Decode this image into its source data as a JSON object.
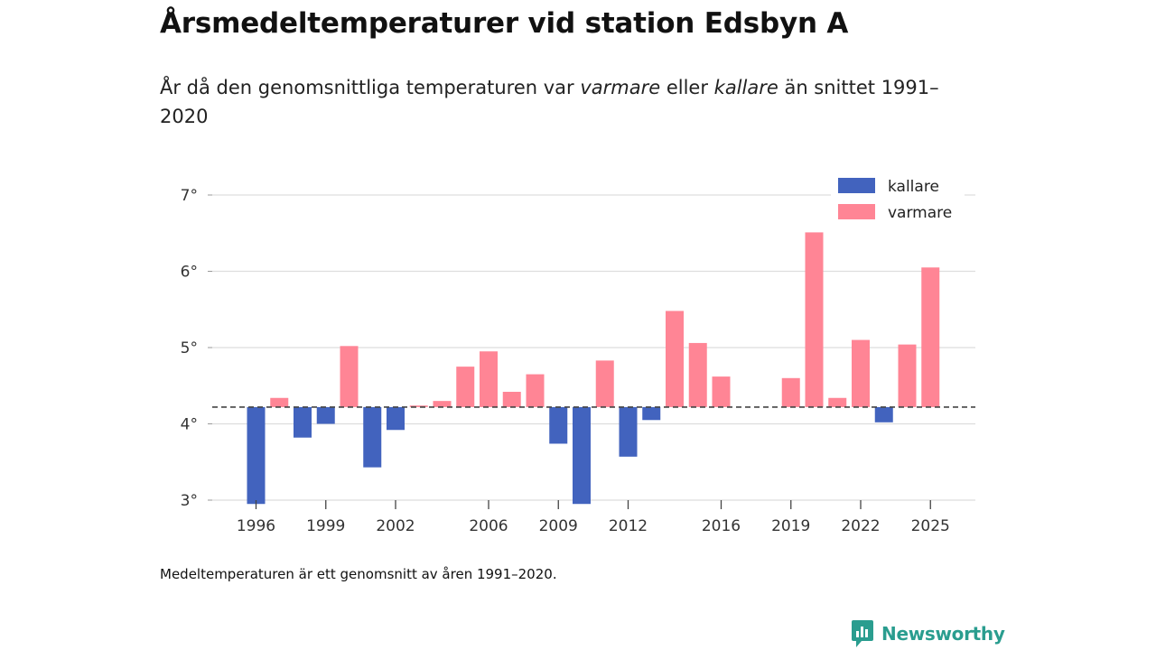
{
  "title": "Årsmedeltemperaturer vid station Edsbyn A",
  "subtitle": {
    "prefix": "År då den genomsnittliga temperaturen var ",
    "warmer": "varmare",
    "middle": " eller ",
    "colder": "kallare",
    "suffix": " än snittet 1991–2020"
  },
  "note": "Medeltemperaturen är ett genomsnitt av åren 1991–2020.",
  "brand": {
    "name": "Newsworthy",
    "icon": "newsworthy-logo-icon",
    "color": "#2a9d8f"
  },
  "colors": {
    "colder": "#4263be",
    "warmer": "#ff8595",
    "grid": "#dddddd",
    "baseline": "#444444"
  },
  "chart_data": {
    "type": "bar",
    "baseline": 4.22,
    "ylim": [
      3,
      7
    ],
    "yticks": [
      3,
      4,
      5,
      6,
      7
    ],
    "ytick_suffix": "°",
    "xlim": [
      1995,
      2026
    ],
    "xticks": [
      1996,
      1999,
      2002,
      2006,
      2009,
      2012,
      2016,
      2019,
      2022,
      2025
    ],
    "legend": [
      {
        "key": "colder",
        "label": "kallare"
      },
      {
        "key": "warmer",
        "label": "varmare"
      }
    ],
    "legend_position": "top-right",
    "points": [
      {
        "year": 1996,
        "value": 2.95
      },
      {
        "year": 1997,
        "value": 4.34
      },
      {
        "year": 1998,
        "value": 3.82
      },
      {
        "year": 1999,
        "value": 4.0
      },
      {
        "year": 2000,
        "value": 5.02
      },
      {
        "year": 2001,
        "value": 3.43
      },
      {
        "year": 2002,
        "value": 3.92
      },
      {
        "year": 2003,
        "value": 4.24
      },
      {
        "year": 2004,
        "value": 4.3
      },
      {
        "year": 2005,
        "value": 4.75
      },
      {
        "year": 2006,
        "value": 4.95
      },
      {
        "year": 2007,
        "value": 4.42
      },
      {
        "year": 2008,
        "value": 4.65
      },
      {
        "year": 2009,
        "value": 3.74
      },
      {
        "year": 2010,
        "value": 2.95
      },
      {
        "year": 2011,
        "value": 4.83
      },
      {
        "year": 2012,
        "value": 3.57
      },
      {
        "year": 2013,
        "value": 4.05
      },
      {
        "year": 2014,
        "value": 5.48
      },
      {
        "year": 2015,
        "value": 5.06
      },
      {
        "year": 2016,
        "value": 4.62
      },
      {
        "year": 2019,
        "value": 4.6
      },
      {
        "year": 2020,
        "value": 6.51
      },
      {
        "year": 2021,
        "value": 4.34
      },
      {
        "year": 2022,
        "value": 5.1
      },
      {
        "year": 2023,
        "value": 4.02
      },
      {
        "year": 2024,
        "value": 5.04
      },
      {
        "year": 2025,
        "value": 6.05
      }
    ]
  }
}
